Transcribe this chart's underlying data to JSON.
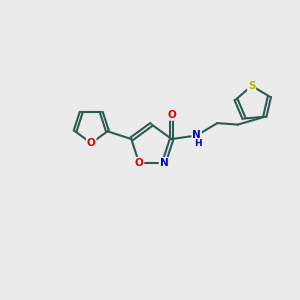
{
  "bg_color": "#ebebeb",
  "bond_color": "#2d5a52",
  "bond_width": 1.5,
  "atom_colors": {
    "O": "#dd0000",
    "N": "#0000cc",
    "S": "#b8b800",
    "C": "#2d5a52"
  },
  "font_size": 8,
  "fig_size": [
    3.0,
    3.0
  ],
  "dpi": 100
}
